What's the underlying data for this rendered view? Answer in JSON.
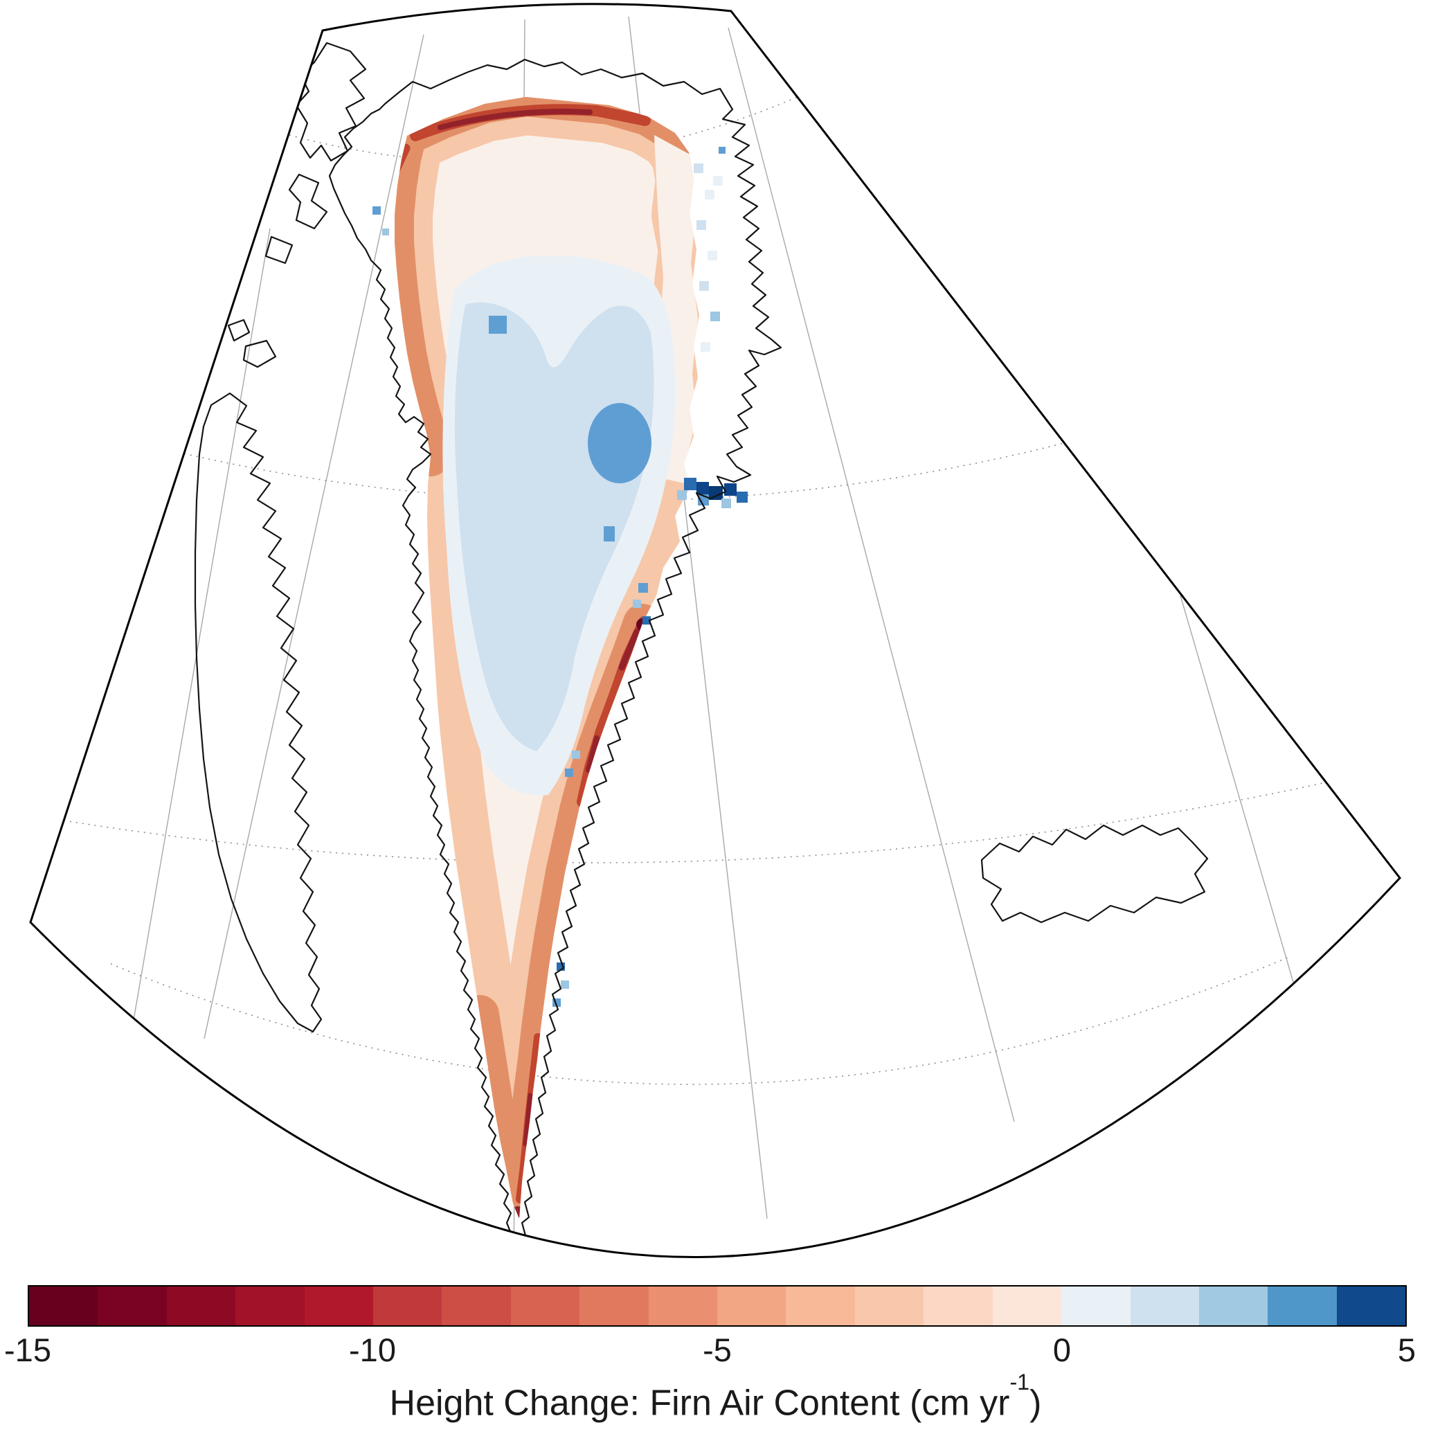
{
  "figure": {
    "kind": "map-figure",
    "projection": "polar conic-style sector",
    "background": "#ffffff"
  },
  "palette": {
    "frame": "#000000",
    "coast": "#141414",
    "graticule": "#a8a8a8",
    "graticule-dots": "#8c8c8c",
    "ice-base": "#faf0ea",
    "margin-light": "#f6c7a9",
    "margin-mid": "#e28f67",
    "margin-dark": "#c1452f",
    "margin-deep": "#93222b",
    "margin-darkest": "#6b0620",
    "blue-pale": "#e9f1f7",
    "blue-light": "#cfe0ef",
    "blue-mid": "#9cc6e2",
    "blue-strong": "#5f9ed2",
    "blue-deep": "#2a6cb0",
    "blue-navy": "#0d4588",
    "blue-darkest": "#083a73"
  },
  "map": {
    "regions": [
      "greenland",
      "baffin-island",
      "ellesmere-island",
      "iceland"
    ]
  },
  "colorbar": {
    "range": [
      -15,
      5
    ],
    "ticks": [
      {
        "label": "-15",
        "value": -15
      },
      {
        "label": "-10",
        "value": -10
      },
      {
        "label": "-5",
        "value": -5
      },
      {
        "label": "0",
        "value": 0
      },
      {
        "label": "5",
        "value": 5
      }
    ],
    "segment_colors": [
      "#67001f",
      "#7a0322",
      "#8e0a24",
      "#a21328",
      "#b2182b",
      "#c03a3c",
      "#cc4e45",
      "#d76350",
      "#e1795e",
      "#ea8f70",
      "#f2a683",
      "#f7b997",
      "#f9c8ac",
      "#fbd7c4",
      "#fce6d9",
      "#e9f0f6",
      "#cfe1ef",
      "#a2c9e2",
      "#4f97c8",
      "#10498c"
    ],
    "title_prefix": "Height Change: Firn Air Content (cm yr",
    "title_sup": "-1",
    "title_suffix": ")"
  },
  "chart_data": {
    "type": "heatmap",
    "title": "Height Change: Firn Air Content (cm yr⁻¹)",
    "units": "cm yr⁻¹",
    "colorbar": {
      "orientation": "horizontal",
      "min": -15,
      "max": 5,
      "tick_labels": [
        "-15",
        "-10",
        "-5",
        "0",
        "5"
      ],
      "n_segments": 20,
      "zero_position_fraction": 0.75
    },
    "spatial_pattern": {
      "ice_sheet_margins": "negative (reds), strongest around -10 to -15 along the north, northwest, southeast and southern ice-sheet margins",
      "interior": "near zero to weakly positive (pale to light blue) over the central ice sheet",
      "positive_patches": "about +2 to +3 in a south-central interior patch and a small north-central cell; isolated cells up to about +5 near the central east coast"
    }
  }
}
